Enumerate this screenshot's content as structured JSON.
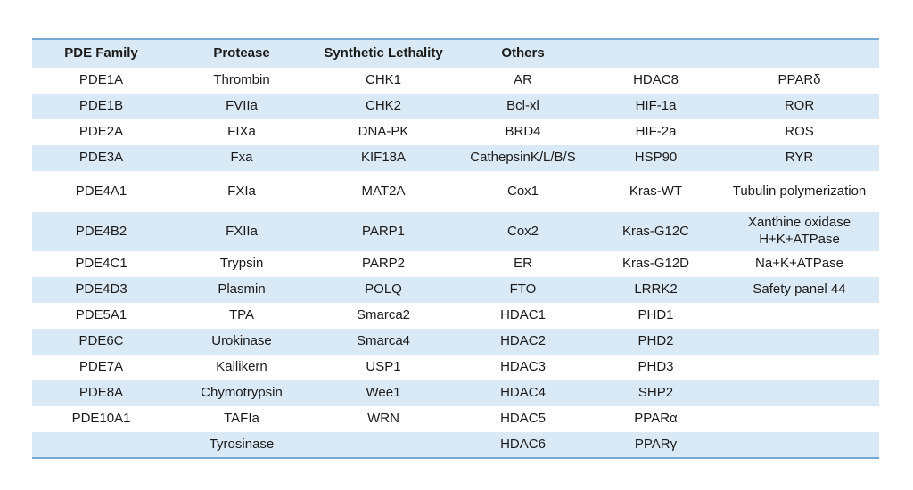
{
  "table": {
    "headers": [
      "PDE Family",
      "Protease",
      "Synthetic Lethality",
      "Others",
      "",
      ""
    ],
    "rows": [
      {
        "cells": [
          "PDE1A",
          "Thrombin",
          "CHK1",
          "AR",
          "HDAC8",
          "PPARδ"
        ]
      },
      {
        "cells": [
          "PDE1B",
          "FVIIa",
          "CHK2",
          "Bcl-xl",
          "HIF-1a",
          "ROR"
        ]
      },
      {
        "cells": [
          "PDE2A",
          "FIXa",
          "DNA-PK",
          "BRD4",
          "HIF-2a",
          "ROS"
        ]
      },
      {
        "cells": [
          "PDE3A",
          "Fxa",
          "KIF18A",
          "CathepsinK/L/B/S",
          "HSP90",
          "RYR"
        ]
      },
      {
        "cells": [
          "PDE4A1",
          "FXIa",
          "MAT2A",
          "Cox1",
          "Kras-WT",
          "Tubulin polymerization"
        ]
      },
      {
        "cells": [
          "PDE4B2",
          "FXIIa",
          "PARP1",
          "Cox2",
          "Kras-G12C",
          "Xanthine oxidase\nH+K+ATPase"
        ]
      },
      {
        "cells": [
          "PDE4C1",
          "Trypsin",
          "PARP2",
          "ER",
          "Kras-G12D",
          "Na+K+ATPase"
        ]
      },
      {
        "cells": [
          "PDE4D3",
          "Plasmin",
          "POLQ",
          "FTO",
          "LRRK2",
          "Safety panel 44"
        ]
      },
      {
        "cells": [
          "PDE5A1",
          "TPA",
          "Smarca2",
          "HDAC1",
          "PHD1",
          ""
        ]
      },
      {
        "cells": [
          "PDE6C",
          "Urokinase",
          "Smarca4",
          "HDAC2",
          "PHD2",
          ""
        ]
      },
      {
        "cells": [
          "PDE7A",
          "Kallikern",
          "USP1",
          "HDAC3",
          "PHD3",
          ""
        ]
      },
      {
        "cells": [
          "PDE8A",
          "Chymotrypsin",
          "Wee1",
          "HDAC4",
          "SHP2",
          ""
        ]
      },
      {
        "cells": [
          "PDE10A1",
          "TAFIa",
          "WRN",
          "HDAC5",
          "PPARα",
          ""
        ]
      },
      {
        "cells": [
          "",
          "Tyrosinase",
          "",
          "HDAC6",
          "PPARγ",
          ""
        ]
      }
    ],
    "colors": {
      "row_alt": "#d9e9f5",
      "border": "#74aad2",
      "text": "#1b1b1b"
    }
  }
}
